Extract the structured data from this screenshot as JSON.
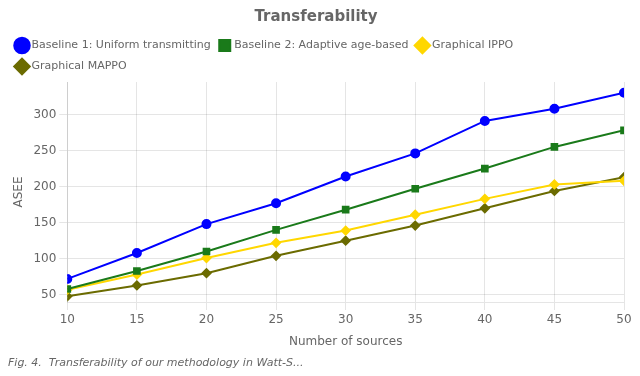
{
  "chart_data": {
    "type": "line",
    "title": "Transferability",
    "x_label": "Number of sources",
    "y_label": "ASEE",
    "caption": "Fig. 4.  Transferability of our methodology in Watt-S...",
    "x": [
      10,
      15,
      20,
      25,
      30,
      35,
      40,
      45,
      50
    ],
    "series": [
      {
        "name": "Baseline 1: Uniform transmitting",
        "color": "#0000ff",
        "marker": "circle",
        "values": [
          72,
          108,
          148,
          177,
          214,
          246,
          291,
          308,
          330
        ]
      },
      {
        "name": "Baseline 2: Adaptive age-based",
        "color": "#1a7a1a",
        "marker": "square",
        "values": [
          58,
          83,
          110,
          140,
          168,
          197,
          225,
          255,
          278
        ]
      },
      {
        "name": "Graphical IPPO",
        "color": "#ffd700",
        "marker": "diamond",
        "values": [
          57,
          78,
          101,
          122,
          139,
          161,
          183,
          203,
          208
        ]
      },
      {
        "name": "Graphical MAPPO",
        "color": "#6b6b00",
        "marker": "diamond",
        "values": [
          48,
          63,
          80,
          104,
          125,
          146,
          170,
          194,
          213
        ]
      }
    ],
    "xlim": [
      10,
      50
    ],
    "ylim": [
      40,
      345
    ],
    "xticks": [
      10,
      15,
      20,
      25,
      30,
      35,
      40,
      45,
      50
    ],
    "yticks": [
      50,
      100,
      150,
      200,
      250,
      300
    ],
    "grid": true,
    "legend": "upper left"
  }
}
